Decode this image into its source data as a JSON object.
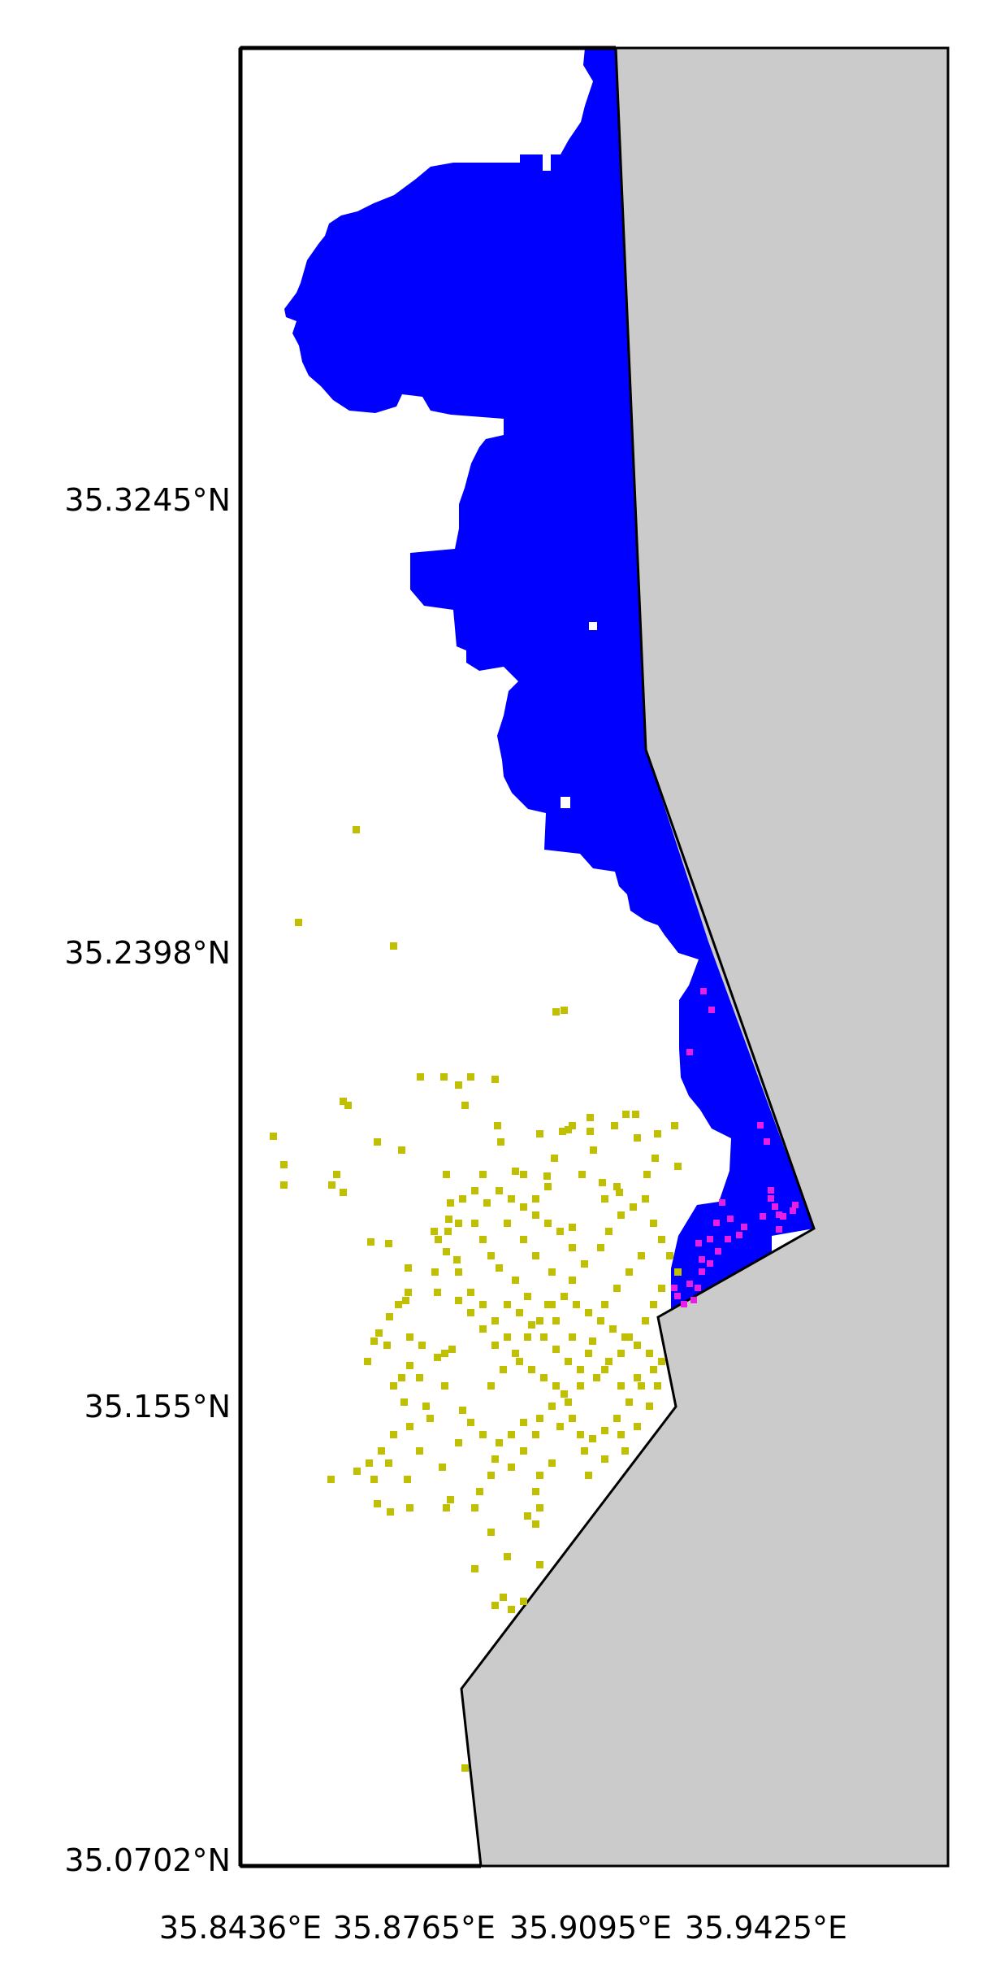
{
  "map": {
    "lat_labels": [
      "35.3245°N",
      "35.2398°N",
      "35.155°N",
      "35.0702°N"
    ],
    "lon_labels": [
      "35.8436°E",
      "35.8765°E",
      "35.9095°E",
      "35.9425°E"
    ],
    "lat_range": [
      35.0702,
      35.4089
    ],
    "lon_range": [
      35.8436,
      35.9744
    ]
  },
  "colors": {
    "land": "#cbcbcb",
    "water": "#ffffff",
    "coastline": "#000000",
    "blue_region": "#0000ff",
    "magenta_points": "#e61ee6",
    "yellow_points": "#c0c000"
  }
}
